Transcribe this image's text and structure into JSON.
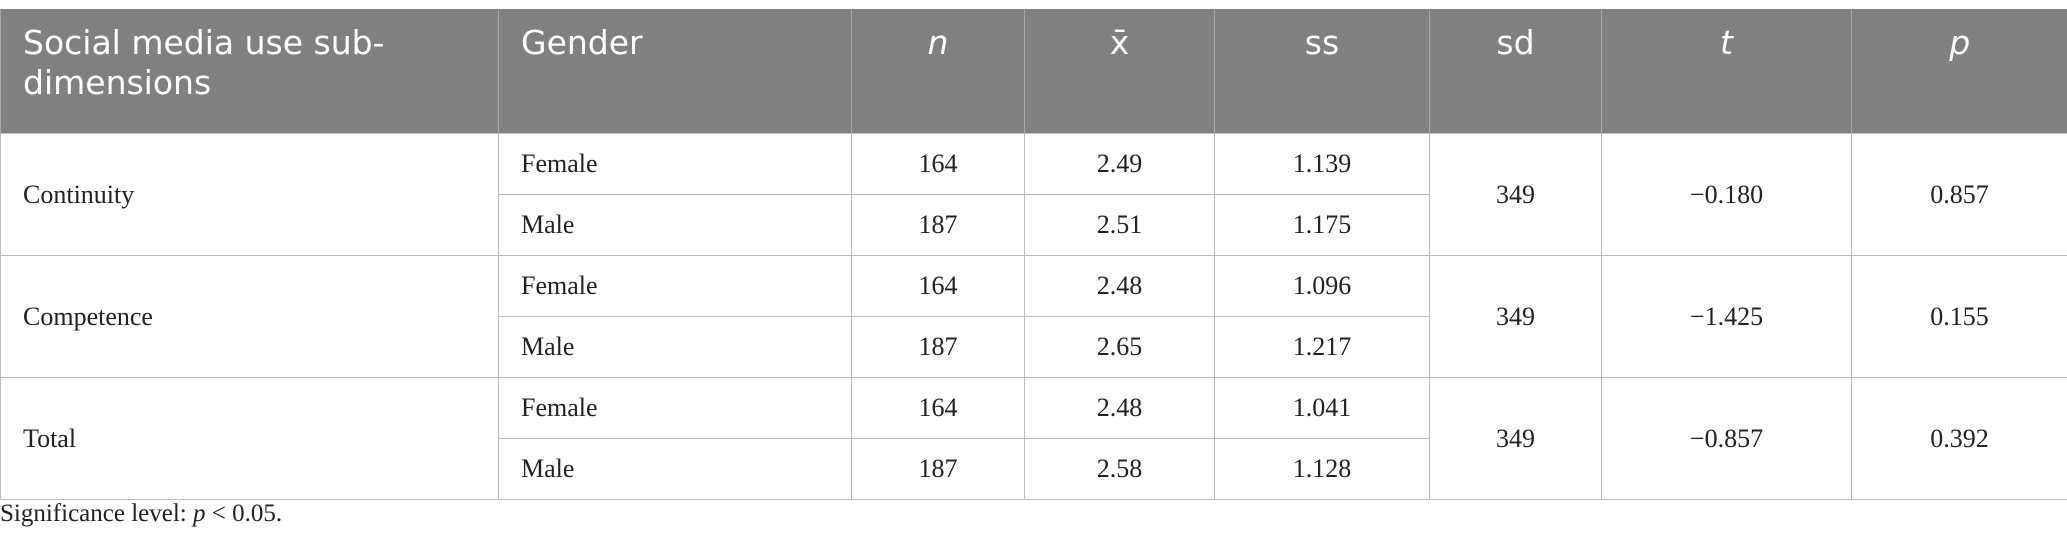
{
  "table": {
    "header": [
      "Social media use sub-dimensions",
      "Gender",
      "n",
      "x̄",
      "ss",
      "sd",
      "t",
      "p"
    ],
    "groups": [
      {
        "label": "Continuity",
        "rows": [
          [
            "Female",
            "164",
            "2.49",
            "1.139"
          ],
          [
            "Male",
            "187",
            "2.51",
            "1.175"
          ]
        ],
        "sd": "349",
        "t": "−0.180",
        "p": "0.857"
      },
      {
        "label": "Competence",
        "rows": [
          [
            "Female",
            "164",
            "2.48",
            "1.096"
          ],
          [
            "Male",
            "187",
            "2.65",
            "1.217"
          ]
        ],
        "sd": "349",
        "t": "−1.425",
        "p": "0.155"
      },
      {
        "label": "Total",
        "rows": [
          [
            "Female",
            "164",
            "2.48",
            "1.041"
          ],
          [
            "Male",
            "187",
            "2.58",
            "1.128"
          ]
        ],
        "sd": "349",
        "t": "−0.857",
        "p": "0.392"
      }
    ]
  },
  "footnote": {
    "prefix": "Significance level:",
    "italic": "p",
    "suffix": "< 0.05."
  }
}
